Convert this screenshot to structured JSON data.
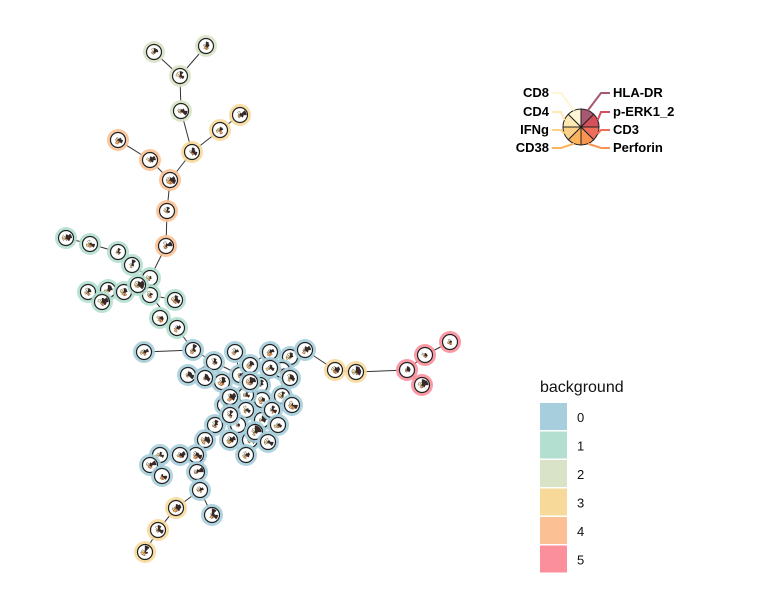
{
  "markers": [
    {
      "name": "HLA-DR",
      "color": "#a85870"
    },
    {
      "name": "p-ERK1_2",
      "color": "#d4505a"
    },
    {
      "name": "CD3",
      "color": "#ee6e5c"
    },
    {
      "name": "Perforin",
      "color": "#f99453"
    },
    {
      "name": "CD38",
      "color": "#fcb45c"
    },
    {
      "name": "IFNg",
      "color": "#fdd088"
    },
    {
      "name": "CD4",
      "color": "#fee8b4"
    },
    {
      "name": "CD8",
      "color": "#fff6d6"
    }
  ],
  "background_legend": {
    "title": "background",
    "items": [
      {
        "label": "0",
        "color": "#a6cedc"
      },
      {
        "label": "1",
        "color": "#b3dfd0"
      },
      {
        "label": "2",
        "color": "#d8e3c8"
      },
      {
        "label": "3",
        "color": "#f7d99a"
      },
      {
        "label": "4",
        "color": "#fbc195"
      },
      {
        "label": "5",
        "color": "#fb8f9b"
      }
    ]
  }
}
